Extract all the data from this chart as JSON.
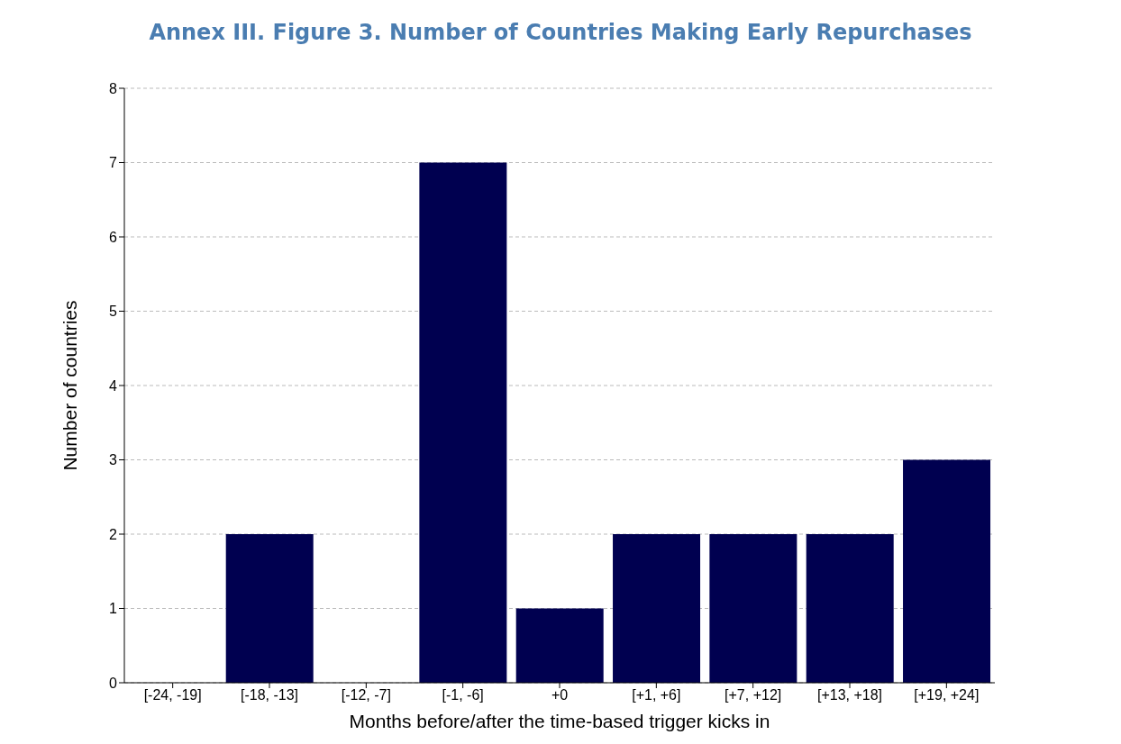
{
  "chart_data": {
    "type": "bar",
    "title": "Annex III. Figure 3. Number of Countries Making Early Repurchases",
    "categories": [
      "[-24, -19]",
      "[-18, -13]",
      "[-12, -7]",
      "[-1, -6]",
      "+0",
      "[+1, +6]",
      "[+7, +12]",
      "[+13, +18]",
      "[+19, +24]"
    ],
    "values": [
      0,
      2,
      0,
      7,
      1,
      2,
      2,
      2,
      3
    ],
    "color": "#000050",
    "xlabel": "Months before/after the time-based trigger kicks in",
    "ylabel": "Number of countries",
    "ylim": [
      0,
      8
    ],
    "yticks": [
      0,
      1,
      2,
      3,
      4,
      5,
      6,
      7,
      8
    ],
    "grid": "y",
    "legend": false
  }
}
